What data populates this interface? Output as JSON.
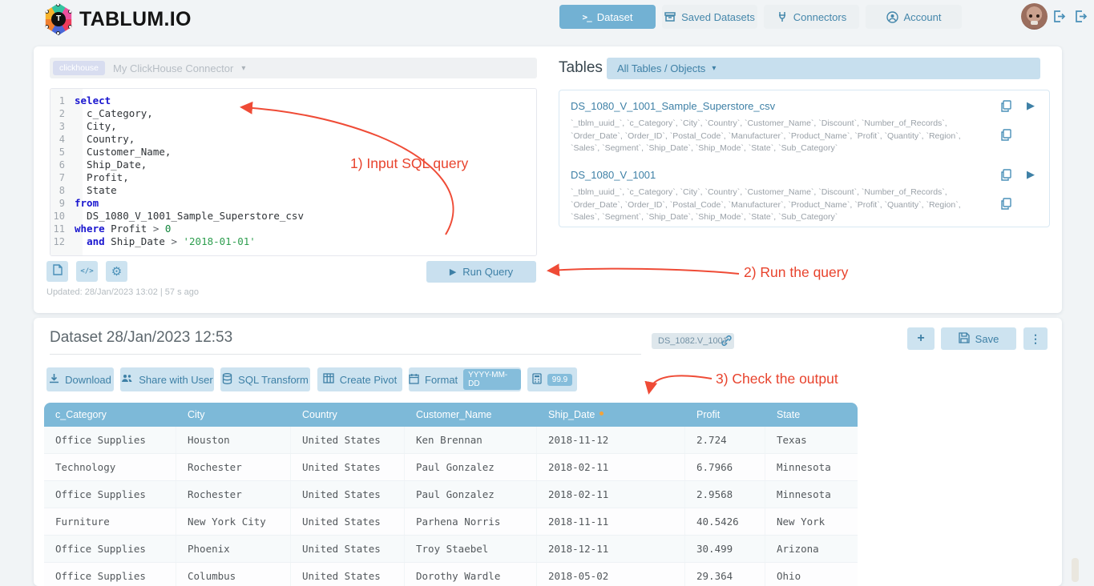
{
  "colors": {
    "accent": "#72b1d3",
    "accent_light": "#c9e0ef",
    "table_header_blue": "#7db9d8",
    "annotation_red": "#e8432d",
    "link_blue": "#3e80a6"
  },
  "brand": {
    "name": "TABLUM.IO"
  },
  "icons": {
    "terminal": ">_",
    "code": "</>",
    "gear": "⚙",
    "play": "▶",
    "caret": "▾",
    "kebab": "⋮",
    "plus": "+"
  },
  "nav": {
    "items": [
      {
        "label": "Dataset",
        "active": true
      },
      {
        "label": "Saved Datasets",
        "active": false
      },
      {
        "label": "Connectors",
        "active": false
      },
      {
        "label": "Account",
        "active": false
      }
    ]
  },
  "connector": {
    "type_badge": "clickhouse",
    "name": "My ClickHouse Connector"
  },
  "sql_editor": {
    "lines": [
      [
        [
          "kw",
          "select"
        ]
      ],
      [
        [
          "id",
          "  c_Category,"
        ]
      ],
      [
        [
          "id",
          "  City,"
        ]
      ],
      [
        [
          "id",
          "  Country,"
        ]
      ],
      [
        [
          "id",
          "  Customer_Name,"
        ]
      ],
      [
        [
          "id",
          "  Ship_Date,"
        ]
      ],
      [
        [
          "id",
          "  Profit,"
        ]
      ],
      [
        [
          "id",
          "  State"
        ]
      ],
      [
        [
          "kw",
          "from"
        ]
      ],
      [
        [
          "id",
          "  DS_1080_V_1001_Sample_Superstore_csv"
        ]
      ],
      [
        [
          "kw",
          "where"
        ],
        [
          "id",
          " Profit "
        ],
        [
          "op",
          ">"
        ],
        [
          "num",
          " 0"
        ]
      ],
      [
        [
          "id",
          "  "
        ],
        [
          "kw",
          "and"
        ],
        [
          "id",
          " Ship_Date "
        ],
        [
          "op",
          ">"
        ],
        [
          "str",
          " '2018-01-01'"
        ]
      ]
    ]
  },
  "editor_actions": {
    "run_label": "Run Query",
    "updated": "Updated: 28/Jan/2023 13:02 | 57 s ago"
  },
  "tables_panel": {
    "title": "Tables",
    "filter_label": "All Tables / Objects",
    "items": [
      {
        "name": "DS_1080_V_1001_Sample_Superstore_csv",
        "columns": "`_tblm_uuid_`, `c_Category`, `City`, `Country`, `Customer_Name`, `Discount`, `Number_of_Records`, `Order_Date`, `Order_ID`, `Postal_Code`, `Manufacturer`, `Product_Name`, `Profit`, `Quantity`, `Region`, `Sales`, `Segment`, `Ship_Date`, `Ship_Mode`, `State`, `Sub_Category`"
      },
      {
        "name": "DS_1080_V_1001",
        "columns": "`_tblm_uuid_`, `c_Category`, `City`, `Country`, `Customer_Name`, `Discount`, `Number_of_Records`, `Order_Date`, `Order_ID`, `Postal_Code`, `Manufacturer`, `Product_Name`, `Profit`, `Quantity`, `Region`, `Sales`, `Segment`, `Ship_Date`, `Ship_Mode`, `State`, `Sub_Category`"
      }
    ]
  },
  "annotations": {
    "step1": "1) Input SQL query",
    "step2": "2) Run the query",
    "step3": "3) Check the output"
  },
  "dataset": {
    "title": "Dataset 28/Jan/2023 12:53",
    "id_badge": "DS_1082.V_1001",
    "save_label": "Save"
  },
  "toolbar": {
    "download": "Download",
    "share": "Share with User",
    "sql_transform": "SQL Transform",
    "create_pivot": "Create Pivot",
    "format": "Format",
    "format_badge": "YYYY-MM-DD",
    "number_badge": "99.9"
  },
  "results": {
    "columns": [
      "c_Category",
      "City",
      "Country",
      "Customer_Name",
      "Ship_Date",
      "Profit",
      "State"
    ],
    "sorted_column": "Ship_Date",
    "rows": [
      [
        "Office Supplies",
        "Houston",
        "United States",
        "Ken Brennan",
        "2018-11-12",
        "2.724",
        "Texas"
      ],
      [
        "Technology",
        "Rochester",
        "United States",
        "Paul Gonzalez",
        "2018-02-11",
        "6.7966",
        "Minnesota"
      ],
      [
        "Office Supplies",
        "Rochester",
        "United States",
        "Paul Gonzalez",
        "2018-02-11",
        "2.9568",
        "Minnesota"
      ],
      [
        "Furniture",
        "New York City",
        "United States",
        "Parhena Norris",
        "2018-11-11",
        "40.5426",
        "New York"
      ],
      [
        "Office Supplies",
        "Phoenix",
        "United States",
        "Troy Staebel",
        "2018-12-11",
        "30.499",
        "Arizona"
      ],
      [
        "Office Supplies",
        "Columbus",
        "United States",
        "Dorothy Wardle",
        "2018-05-02",
        "29.364",
        "Ohio"
      ]
    ]
  }
}
